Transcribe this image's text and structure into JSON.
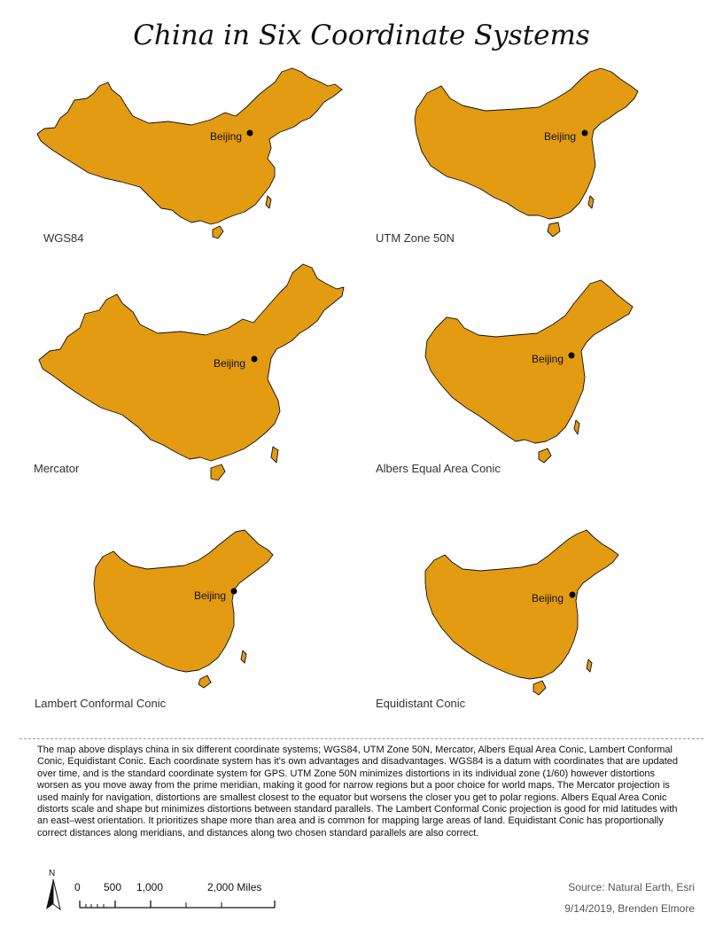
{
  "title": "China in Six Coordinate Systems",
  "city": "Beijing",
  "land_color": "#e39b12",
  "outline_color": "#111111",
  "panels": [
    {
      "label": "WGS84"
    },
    {
      "label": "UTM Zone 50N"
    },
    {
      "label": "Mercator"
    },
    {
      "label": "Albers Equal Area Conic"
    },
    {
      "label": "Lambert Conformal Conic"
    },
    {
      "label": "Equidistant Conic"
    }
  ],
  "description": "The map above displays china in six different coordinate systems; WGS84, UTM Zone 50N, Mercator, Albers Equal Area Conic, Lambert Conformal Conic, Equidistant Conic. Each coordinate system has it's own advantages and disadvantages.  WGS84 is a datum with coordinates that are updated over time, and is the standard coordinate system for GPS. UTM Zone 50N minimizes distortions in its individual zone (1/60) however distortions worsen as you move away from the prime meridian, making it good for narrow regions but a poor choice for world maps. The Mercator projection is used mainly for navigation, distortions are smallest closest to the equator but worsens the closer you get to polar regions. Albers Equal Area Conic distorts scale and shape but minimizes distortions between standard parallels. The Lambert Conformal Conic projection is good for mid latitudes with an east–west orientation. It prioritizes shape more than area and is common for mapping large areas of land. Equidistant Conic has proportionally correct distances along meridians, and distances along two chosen standard parallels are also correct.",
  "north_arrow": "N",
  "scale_bar": {
    "labels": [
      "0",
      "500",
      "1,000",
      "2,000 Miles"
    ]
  },
  "source": "Source: Natural Earth, Esri",
  "credit": "9/14/2019, Brenden Elmore",
  "icons": {
    "north": "north-arrow-icon"
  }
}
